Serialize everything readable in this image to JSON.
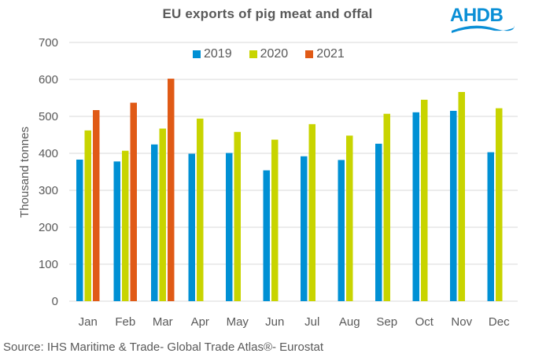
{
  "brand": {
    "logo_text": "AHDB",
    "logo_color": "#0A8FD6"
  },
  "source": "Source: IHS Maritime & Trade- Global Trade Atlas®- Eurostat",
  "chart_data": {
    "type": "bar",
    "title": "EU exports  of pig meat and offal",
    "xlabel": "",
    "ylabel": "Thousand tonnes",
    "ylim": [
      0,
      700
    ],
    "yticks": [
      0,
      100,
      200,
      300,
      400,
      500,
      600,
      700
    ],
    "grid": true,
    "legend_position": "top-center",
    "categories": [
      "Jan",
      "Feb",
      "Mar",
      "Apr",
      "May",
      "Jun",
      "Jul",
      "Aug",
      "Sep",
      "Oct",
      "Nov",
      "Dec"
    ],
    "series": [
      {
        "name": "2019",
        "color": "#0090D4",
        "values": [
          383,
          378,
          424,
          399,
          401,
          354,
          392,
          382,
          426,
          511,
          515,
          403
        ]
      },
      {
        "name": "2020",
        "color": "#C8D400",
        "values": [
          462,
          407,
          467,
          494,
          458,
          437,
          479,
          448,
          507,
          545,
          566,
          522
        ]
      },
      {
        "name": "2021",
        "color": "#E05A16",
        "values": [
          517,
          537,
          602,
          null,
          null,
          null,
          null,
          null,
          null,
          null,
          null,
          null
        ]
      }
    ]
  }
}
